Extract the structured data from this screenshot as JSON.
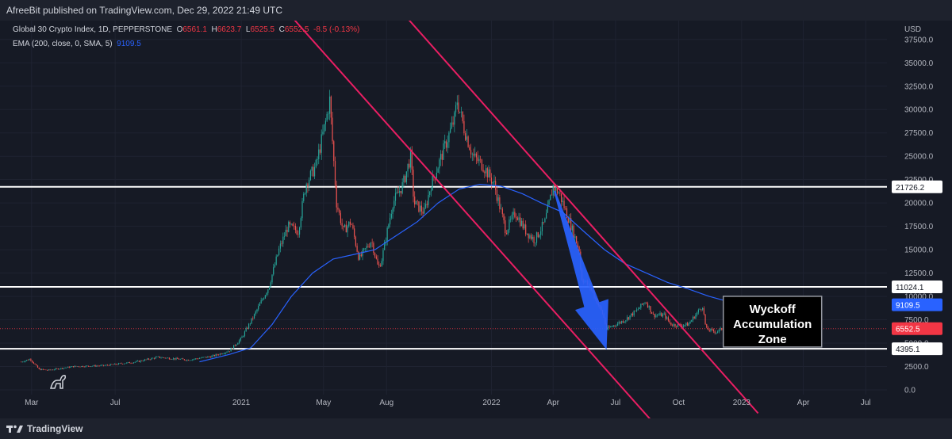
{
  "header": {
    "publisher_text": "AfreeBit published on TradingView.com, Dec 29, 2022 21:49 UTC"
  },
  "legend": {
    "symbol": "Global 30 Crypto Index, 1D, PEPPERSTONE",
    "o_label": "O",
    "o_value": "6561.1",
    "h_label": "H",
    "h_value": "6623.7",
    "l_label": "L",
    "l_value": "6525.5",
    "c_label": "C",
    "c_value": "6552.5",
    "change": "-8.5 (-0.13%)",
    "ema_label": "EMA (200, close, 0, SMA, 5)",
    "ema_value": "9109.5"
  },
  "footer": {
    "brand": "TradingView"
  },
  "colors": {
    "up": "#26a69a",
    "down": "#ef5350",
    "channel": "#e91e63",
    "ema": "#2962ff",
    "level": "#ffffff",
    "arrow": "#2962ff",
    "background": "#161a25"
  },
  "chart_data": {
    "type": "candlestick",
    "title": "Global 30 Crypto Index, 1D, PEPPERSTONE",
    "ylabel": "USD",
    "ylim": [
      0,
      38500
    ],
    "y_ticks": [
      0,
      2500,
      5000,
      7500,
      10000,
      12500,
      15000,
      17500,
      20000,
      22500,
      25000,
      27500,
      30000,
      32500,
      35000,
      37500
    ],
    "y_tick_labels": [
      "0.0",
      "2500.0",
      "5000.0",
      "7500.0",
      "10000.0",
      "12500.0",
      "15000.0",
      "17500.0",
      "20000.0",
      "22500.0",
      "25000.0",
      "27500.0",
      "30000.0",
      "32500.0",
      "35000.0",
      "37500.0"
    ],
    "x_range": [
      "2020-01-15",
      "2023-08-01"
    ],
    "x_ticks": [
      {
        "date": "2020-03-01",
        "label": "Mar"
      },
      {
        "date": "2020-07-01",
        "label": "Jul"
      },
      {
        "date": "2021-01-01",
        "label": "2021"
      },
      {
        "date": "2021-05-01",
        "label": "May"
      },
      {
        "date": "2021-08-01",
        "label": "Aug"
      },
      {
        "date": "2022-01-01",
        "label": "2022"
      },
      {
        "date": "2022-04-01",
        "label": "Apr"
      },
      {
        "date": "2022-07-01",
        "label": "Jul"
      },
      {
        "date": "2022-10-01",
        "label": "Oct"
      },
      {
        "date": "2023-01-01",
        "label": "2023"
      },
      {
        "date": "2023-04-01",
        "label": "Apr"
      },
      {
        "date": "2023-07-01",
        "label": "Jul"
      }
    ],
    "price_path": [
      [
        "2020-02-15",
        3000
      ],
      [
        "2020-02-28",
        3300
      ],
      [
        "2020-03-12",
        2200
      ],
      [
        "2020-03-25",
        2100
      ],
      [
        "2020-05-01",
        2500
      ],
      [
        "2020-06-15",
        2600
      ],
      [
        "2020-08-01",
        3000
      ],
      [
        "2020-09-01",
        3500
      ],
      [
        "2020-10-15",
        3200
      ],
      [
        "2020-11-20",
        3600
      ],
      [
        "2020-12-15",
        4200
      ],
      [
        "2021-01-01",
        5500
      ],
      [
        "2021-01-20",
        8000
      ],
      [
        "2021-02-10",
        11000
      ],
      [
        "2021-02-25",
        15000
      ],
      [
        "2021-03-10",
        17500
      ],
      [
        "2021-03-25",
        17000
      ],
      [
        "2021-04-05",
        22000
      ],
      [
        "2021-04-20",
        24000
      ],
      [
        "2021-05-05",
        29000
      ],
      [
        "2021-05-10",
        31000
      ],
      [
        "2021-05-20",
        20000
      ],
      [
        "2021-05-30",
        17000
      ],
      [
        "2021-06-10",
        18000
      ],
      [
        "2021-06-22",
        14000
      ],
      [
        "2021-07-10",
        16000
      ],
      [
        "2021-07-20",
        13000
      ],
      [
        "2021-07-25",
        14000
      ],
      [
        "2021-08-10",
        20000
      ],
      [
        "2021-08-25",
        22000
      ],
      [
        "2021-09-05",
        25000
      ],
      [
        "2021-09-10",
        20000
      ],
      [
        "2021-09-25",
        19000
      ],
      [
        "2021-10-05",
        22000
      ],
      [
        "2021-10-20",
        25000
      ],
      [
        "2021-11-08",
        29000
      ],
      [
        "2021-11-12",
        31000
      ],
      [
        "2021-11-22",
        28000
      ],
      [
        "2021-12-05",
        25000
      ],
      [
        "2021-12-20",
        24000
      ],
      [
        "2022-01-05",
        22000
      ],
      [
        "2022-01-22",
        17000
      ],
      [
        "2022-02-05",
        19000
      ],
      [
        "2022-02-20",
        17000
      ],
      [
        "2022-03-05",
        16000
      ],
      [
        "2022-03-20",
        18000
      ],
      [
        "2022-04-01",
        21800
      ],
      [
        "2022-04-10",
        21000
      ],
      [
        "2022-04-25",
        18000
      ],
      [
        "2022-05-09",
        15000
      ],
      [
        "2022-05-12",
        12000
      ],
      [
        "2022-05-25",
        11000
      ],
      [
        "2022-06-13",
        8000
      ],
      [
        "2022-06-18",
        6500
      ],
      [
        "2022-07-01",
        7000
      ],
      [
        "2022-07-15",
        7500
      ],
      [
        "2022-08-01",
        8500
      ],
      [
        "2022-08-14",
        9500
      ],
      [
        "2022-08-25",
        8000
      ],
      [
        "2022-09-10",
        8000
      ],
      [
        "2022-09-20",
        7000
      ],
      [
        "2022-10-01",
        6900
      ],
      [
        "2022-10-15",
        7000
      ],
      [
        "2022-11-05",
        9000
      ],
      [
        "2022-11-10",
        6500
      ],
      [
        "2022-11-25",
        6200
      ],
      [
        "2022-12-10",
        6800
      ],
      [
        "2022-12-29",
        6552.5
      ]
    ],
    "ema": {
      "name": "EMA (200, close, 0, SMA, 5)",
      "points": [
        [
          "2020-11-01",
          3000
        ],
        [
          "2020-12-15",
          3800
        ],
        [
          "2021-01-15",
          4500
        ],
        [
          "2021-02-15",
          7000
        ],
        [
          "2021-03-15",
          10000
        ],
        [
          "2021-04-15",
          12500
        ],
        [
          "2021-05-15",
          14000
        ],
        [
          "2021-06-15",
          14500
        ],
        [
          "2021-07-15",
          15000
        ],
        [
          "2021-08-15",
          16500
        ],
        [
          "2021-09-15",
          18000
        ],
        [
          "2021-10-15",
          20000
        ],
        [
          "2021-11-15",
          21500
        ],
        [
          "2021-12-15",
          22000
        ],
        [
          "2022-01-15",
          21800
        ],
        [
          "2022-02-15",
          21000
        ],
        [
          "2022-03-15",
          20000
        ],
        [
          "2022-04-15",
          19000
        ],
        [
          "2022-05-15",
          17000
        ],
        [
          "2022-06-15",
          15000
        ],
        [
          "2022-07-15",
          13500
        ],
        [
          "2022-08-15",
          12500
        ],
        [
          "2022-09-15",
          11500
        ],
        [
          "2022-10-15",
          10800
        ],
        [
          "2022-11-15",
          10000
        ],
        [
          "2022-12-15",
          9400
        ],
        [
          "2022-12-29",
          9109.5
        ]
      ]
    },
    "horizontal_levels": [
      {
        "value": 21726.2,
        "label": "21726.2"
      },
      {
        "value": 11024.1,
        "label": "11024.1"
      },
      {
        "value": 4395.1,
        "label": "4395.1"
      }
    ],
    "price_markers": [
      {
        "value": 9109.5,
        "label": "9109.5",
        "color": "#2962ff"
      },
      {
        "value": 6552.5,
        "label": "6552.5",
        "color": "#f23645"
      }
    ],
    "channel_lines": [
      {
        "from": [
          "2020-11-01",
          51000
        ],
        "to": [
          "2022-08-25",
          -3500
        ]
      },
      {
        "from": [
          "2021-08-25",
          40300
        ],
        "to": [
          "2023-01-25",
          -2500
        ]
      }
    ],
    "arrow": {
      "from": [
        "2022-04-03",
        21300
      ],
      "to": [
        "2022-06-18",
        4300
      ]
    },
    "annotation": {
      "text": [
        "Wyckoff",
        "Accumulation",
        "Zone"
      ],
      "date": "2023-02-15",
      "value": 7300
    }
  }
}
